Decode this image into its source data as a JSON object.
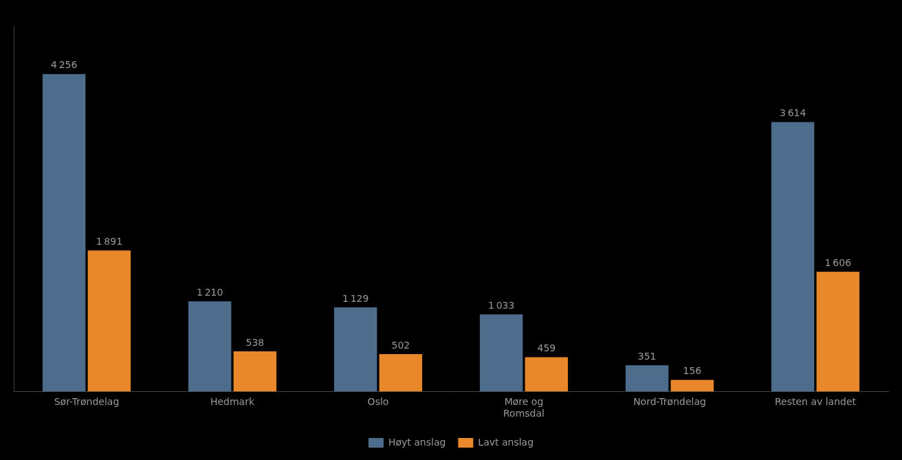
{
  "chart_data": {
    "type": "bar",
    "categories": [
      "Sør-Trøndelag",
      "Hedmark",
      "Oslo",
      "Møre og\nRomsdal",
      "Nord-Trøndelag",
      "Resten av landet"
    ],
    "series": [
      {
        "name": "Høyt anslag",
        "color": "#4e6d8c",
        "values": [
          4256,
          1210,
          1129,
          1033,
          351,
          3614
        ],
        "value_labels": [
          "4 256",
          "1 210",
          "1 129",
          "1 033",
          "351",
          "3 614"
        ]
      },
      {
        "name": "Lavt anslag",
        "color": "#e8882a",
        "values": [
          1891,
          538,
          502,
          459,
          156,
          1606
        ],
        "value_labels": [
          "1 891",
          "538",
          "502",
          "459",
          "156",
          "1 606"
        ]
      }
    ],
    "ylim": [
      0,
      4900
    ],
    "grid": false,
    "legend": "bottom",
    "data_labels": true,
    "tick_labels": "x"
  }
}
